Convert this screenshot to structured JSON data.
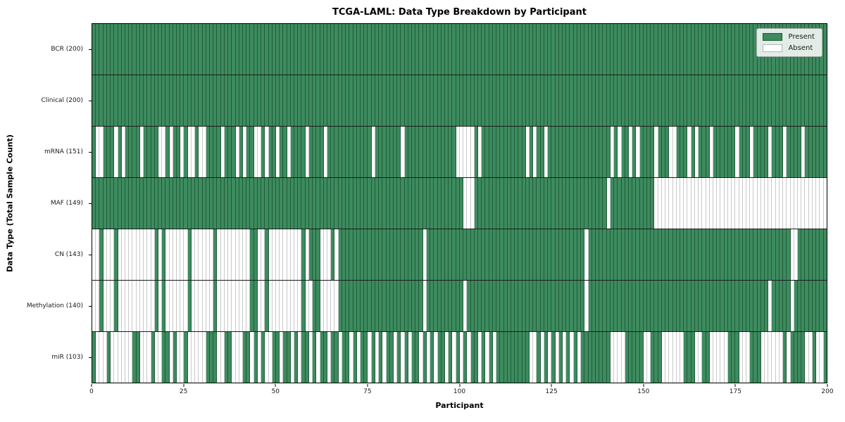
{
  "title": "TCGA-LAML: Data Type Breakdown by Participant",
  "axes": {
    "xlabel": "Participant",
    "ylabel": "Data Type (Total Sample Count)"
  },
  "legend": {
    "present_label": "Present",
    "absent_label": "Absent"
  },
  "colors": {
    "present_fill": "#3d8b5f",
    "present_edge": "#1f5c38",
    "absent_fill": "#ffffff",
    "absent_edge": "#c9c9c9"
  },
  "chart_data": {
    "type": "heatmap",
    "title": "TCGA-LAML: Data Type Breakdown by Participant",
    "xlabel": "Participant",
    "ylabel": "Data Type (Total Sample Count)",
    "xlim": [
      0,
      200
    ],
    "n_participants": 200,
    "x_ticks": [
      0,
      25,
      50,
      75,
      100,
      125,
      150,
      175,
      200
    ],
    "legend_entries": [
      "Present",
      "Absent"
    ],
    "legend_position": "upper right",
    "grid": false,
    "cell_values": "1=present, 0=absent; rows list absent participant indices out of 200",
    "rows": [
      {
        "label": "BCR (200)",
        "data_type": "BCR",
        "present_count": 200,
        "absent_indices": []
      },
      {
        "label": "Clinical (200)",
        "data_type": "Clinical",
        "present_count": 200,
        "absent_indices": []
      },
      {
        "label": "mRNA (151)",
        "data_type": "mRNA",
        "present_count": 151,
        "absent_indices": [
          1,
          2,
          6,
          8,
          13,
          18,
          19,
          21,
          24,
          26,
          27,
          29,
          30,
          35,
          39,
          41,
          44,
          45,
          47,
          50,
          53,
          58,
          63,
          76,
          84,
          99,
          100,
          101,
          102,
          103,
          105,
          118,
          120,
          123,
          141,
          143,
          146,
          148,
          153,
          157,
          158,
          162,
          164,
          168,
          175,
          179,
          184,
          188,
          193
        ]
      },
      {
        "label": "MAF (149)",
        "data_type": "MAF",
        "present_count": 149,
        "absent_indices": [
          101,
          102,
          103,
          140,
          153,
          154,
          155,
          156,
          157,
          158,
          159,
          160,
          161,
          162,
          163,
          164,
          165,
          166,
          167,
          168,
          169,
          170,
          171,
          172,
          173,
          174,
          175,
          176,
          177,
          178,
          179,
          180,
          181,
          182,
          183,
          184,
          185,
          186,
          187,
          188,
          189,
          190,
          191,
          192,
          193,
          194,
          195,
          196,
          197,
          198,
          199
        ]
      },
      {
        "label": "CN (143)",
        "data_type": "CN",
        "present_count": 143,
        "absent_indices": [
          0,
          1,
          3,
          4,
          5,
          7,
          8,
          9,
          10,
          11,
          12,
          13,
          14,
          15,
          16,
          18,
          20,
          21,
          22,
          23,
          24,
          25,
          27,
          28,
          29,
          30,
          31,
          32,
          34,
          35,
          36,
          37,
          38,
          39,
          40,
          41,
          42,
          45,
          46,
          48,
          49,
          50,
          51,
          52,
          53,
          54,
          55,
          56,
          58,
          62,
          63,
          64,
          66,
          90,
          134,
          190,
          191
        ]
      },
      {
        "label": "Methylation (140)",
        "data_type": "Methylation",
        "present_count": 140,
        "absent_indices": [
          0,
          1,
          3,
          4,
          5,
          7,
          8,
          9,
          10,
          11,
          12,
          13,
          14,
          15,
          16,
          18,
          20,
          21,
          22,
          23,
          24,
          25,
          27,
          28,
          29,
          30,
          31,
          32,
          34,
          35,
          36,
          37,
          38,
          39,
          40,
          41,
          42,
          45,
          46,
          48,
          49,
          50,
          51,
          52,
          53,
          54,
          55,
          56,
          58,
          59,
          62,
          63,
          64,
          65,
          66,
          90,
          101,
          134,
          184,
          190
        ]
      },
      {
        "label": "miR (103)",
        "data_type": "miR",
        "present_count": 103,
        "absent_indices": [
          1,
          2,
          3,
          5,
          6,
          7,
          8,
          9,
          10,
          13,
          14,
          15,
          17,
          18,
          21,
          23,
          24,
          26,
          27,
          28,
          29,
          30,
          34,
          35,
          38,
          39,
          40,
          43,
          45,
          47,
          48,
          51,
          54,
          56,
          59,
          61,
          64,
          67,
          70,
          72,
          75,
          77,
          79,
          82,
          84,
          86,
          89,
          91,
          93,
          96,
          98,
          100,
          102,
          105,
          107,
          109,
          119,
          120,
          122,
          124,
          126,
          128,
          130,
          132,
          141,
          142,
          143,
          144,
          150,
          151,
          155,
          156,
          157,
          158,
          159,
          160,
          164,
          165,
          168,
          169,
          170,
          171,
          172,
          176,
          177,
          178,
          182,
          183,
          184,
          185,
          186,
          187,
          189,
          194,
          195,
          197,
          198
        ]
      }
    ]
  }
}
